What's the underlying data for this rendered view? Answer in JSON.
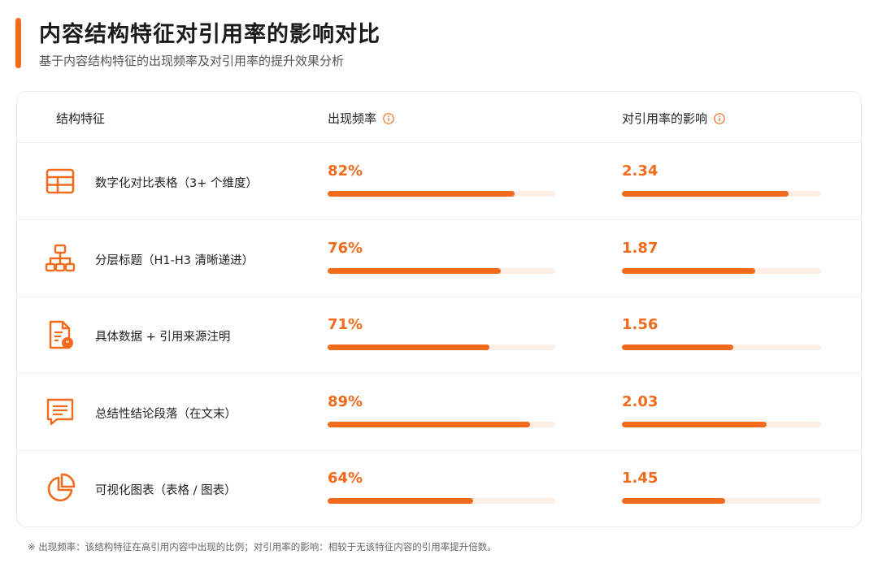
{
  "title": "内容结构特征对引用率的影响对比",
  "subtitle": "基于内容结构特征的出现频率及对引用率的提升效果分析",
  "accent_color": "#F26B1D",
  "track_color": "#FDEEE6",
  "header": {
    "col_feature": "结构特征",
    "col_frequency": "出现频率",
    "col_impact": "对引用率的影响",
    "info_icon": "info-icon"
  },
  "chart_data": {
    "type": "bar",
    "categories": [
      "数字化对比表格（3+ 个维度）",
      "分层标题（H1-H3 清晰递进）",
      "具体数据 + 引用来源注明",
      "总结性结论段落（在文末）",
      "可视化图表（表格 / 图表）"
    ],
    "series": [
      {
        "name": "出现频率",
        "values": [
          82,
          76,
          71,
          89,
          64
        ],
        "labels": [
          "82%",
          "76%",
          "71%",
          "89%",
          "64%"
        ],
        "max": 100
      },
      {
        "name": "对引用率的影响",
        "values": [
          2.34,
          1.87,
          1.56,
          2.03,
          1.45
        ],
        "labels": [
          "2.34",
          "1.87",
          "1.56",
          "2.03",
          "1.45"
        ],
        "max": 2.8
      }
    ],
    "icons": [
      "table-icon",
      "hierarchy-icon",
      "document-quote-icon",
      "message-icon",
      "pie-chart-icon"
    ]
  },
  "footnote": "※  出现频率：该结构特征在高引用内容中出现的比例；对引用率的影响：相较于无该特征内容的引用率提升倍数。"
}
